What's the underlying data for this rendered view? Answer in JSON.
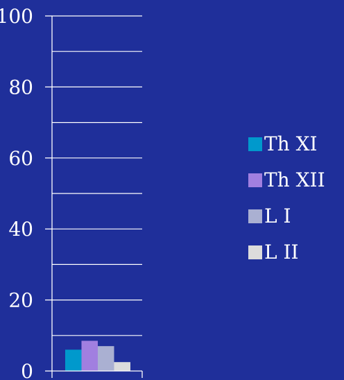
{
  "chart_data": {
    "type": "bar",
    "categories": [
      ""
    ],
    "series": [
      {
        "name": "Th XI",
        "values": [
          6
        ],
        "color": "#0099cc"
      },
      {
        "name": "Th XII",
        "values": [
          8.5
        ],
        "color": "#a17fe0"
      },
      {
        "name": "L I",
        "values": [
          7
        ],
        "color": "#aab0d2"
      },
      {
        "name": "L II",
        "values": [
          2.5
        ],
        "color": "#dcdcdc"
      }
    ],
    "ylim": [
      0,
      100
    ],
    "yticks": [
      "0",
      "20",
      "40",
      "60",
      "80",
      "100"
    ],
    "grid": true,
    "legend_position": "right",
    "title": "",
    "xlabel": "",
    "ylabel": ""
  }
}
